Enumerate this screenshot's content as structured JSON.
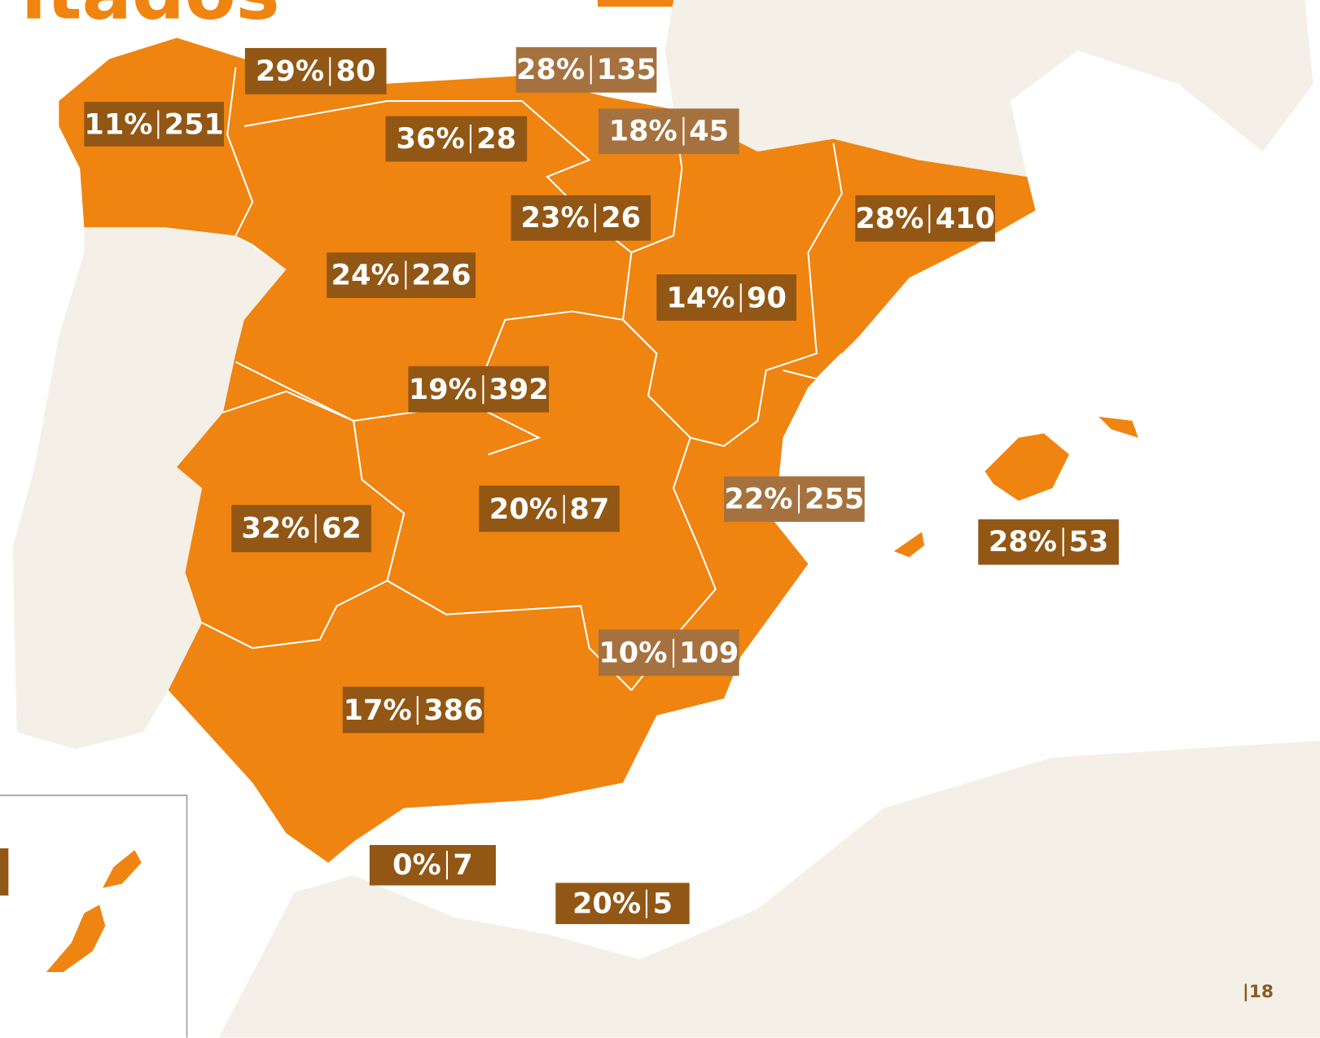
{
  "header": {
    "title_fragment": "ltados"
  },
  "page_number": "18",
  "regions": [
    {
      "pct": "29%",
      "count": "80",
      "shade": "dark"
    },
    {
      "pct": "28%",
      "count": "135",
      "shade": "light"
    },
    {
      "pct": "11%",
      "count": "251",
      "shade": "dark"
    },
    {
      "pct": "36%",
      "count": "28",
      "shade": "dark"
    },
    {
      "pct": "18%",
      "count": "45",
      "shade": "light"
    },
    {
      "pct": "23%",
      "count": "26",
      "shade": "dark"
    },
    {
      "pct": "28%",
      "count": "410",
      "shade": "dark"
    },
    {
      "pct": "24%",
      "count": "226",
      "shade": "dark"
    },
    {
      "pct": "14%",
      "count": "90",
      "shade": "dark"
    },
    {
      "pct": "19%",
      "count": "392",
      "shade": "dark"
    },
    {
      "pct": "22%",
      "count": "255",
      "shade": "light"
    },
    {
      "pct": "32%",
      "count": "62",
      "shade": "dark"
    },
    {
      "pct": "20%",
      "count": "87",
      "shade": "dark"
    },
    {
      "pct": "28%",
      "count": "53",
      "shade": "dark"
    },
    {
      "pct": "10%",
      "count": "109",
      "shade": "light"
    },
    {
      "pct": "17%",
      "count": "386",
      "shade": "dark"
    },
    {
      "pct": "0%",
      "count": "7",
      "shade": "dark"
    },
    {
      "pct": "20%",
      "count": "5",
      "shade": "dark"
    }
  ]
}
